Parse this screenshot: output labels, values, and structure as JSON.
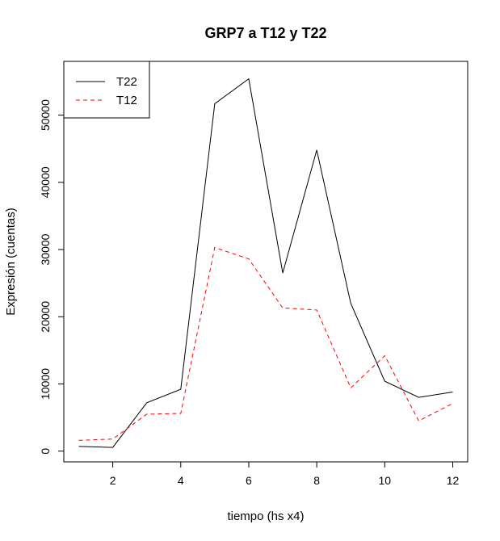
{
  "chart_data": {
    "type": "line",
    "title": "GRP7 a T12 y T22",
    "xlabel": "tiempo (hs x4)",
    "ylabel": "Expresión (cuentas)",
    "x": [
      1,
      2,
      3,
      4,
      5,
      6,
      7,
      8,
      9,
      10,
      11,
      12
    ],
    "xlim": [
      0.56,
      12.44
    ],
    "ylim": [
      -1600,
      58000
    ],
    "x_ticks": [
      2,
      4,
      6,
      8,
      10,
      12
    ],
    "y_ticks": [
      0,
      10000,
      20000,
      30000,
      40000,
      50000
    ],
    "grid": false,
    "legend_position": "top-left",
    "series": [
      {
        "name": "T22",
        "color": "#000000",
        "dash": "solid",
        "values": [
          700,
          550,
          7200,
          9200,
          51700,
          55400,
          26500,
          44800,
          22000,
          10400,
          8000,
          8800
        ]
      },
      {
        "name": "T12",
        "color": "#ff0000",
        "dash": "dashed",
        "values": [
          1600,
          1800,
          5500,
          5600,
          30300,
          28600,
          21300,
          21000,
          9400,
          14200,
          4500,
          7100
        ]
      }
    ]
  }
}
